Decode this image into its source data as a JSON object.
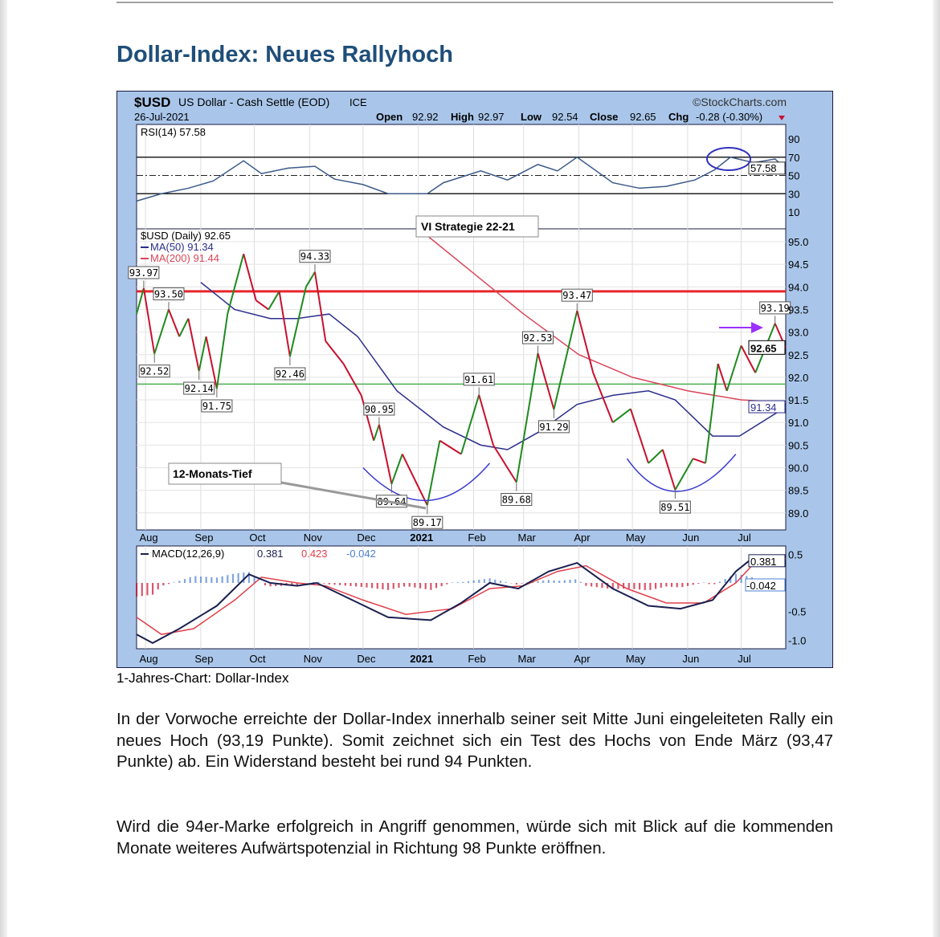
{
  "title": "Dollar-Index: Neues Rallyhoch",
  "caption": "1-Jahres-Chart: Dollar-Index",
  "paragraphs": [
    "In der Vorwoche erreichte der Dollar-Index innerhalb seiner seit Mitte Juni eingeleiteten Rally ein neues Hoch (93,19 Punkte). Somit zeichnet sich ein Test des Hochs von Ende März (93,47 Punkte) ab. Ein Widerstand besteht bei rund 94 Punkten.",
    "Wird die 94er-Marke erfolgreich in Angriff genommen, würde sich mit Blick auf die kommenden Monate weiteres Aufwärtspotenzial in Richtung 98 Punkte eröffnen."
  ],
  "chart_data": {
    "type": "line",
    "symbol": "$USD",
    "name": "US Dollar - Cash Settle (EOD)",
    "exchange": "ICE",
    "source": "©StockCharts.com",
    "date": "26-Jul-2021",
    "quote": {
      "open_label": "Open",
      "open": "92.92",
      "high_label": "High",
      "high": "92.97",
      "low_label": "Low",
      "low": "92.54",
      "close_label": "Close",
      "close": "92.65",
      "chg_label": "Chg",
      "chg": "-0.28 (-0.30%)"
    },
    "colors": {
      "background": "#a9c6ea",
      "price_up": "#1e8a1e",
      "price_down": "#c8102e",
      "ma50": "#2b2e8c",
      "ma200": "#d9475a",
      "resistance": "#e8262a",
      "support": "#4caf50",
      "arrow": "#9b30ff",
      "rsi_line": "#3c5a88",
      "macd": "#1a1f4f",
      "signal": "#e0404a",
      "histogram": "#4a7fd6"
    },
    "rsi": {
      "legend": "RSI(14) 57.58",
      "last": "57.58",
      "y_ticks": [
        "90",
        "70",
        "50",
        "30",
        "10"
      ],
      "points": [
        [
          "2020-07-27",
          22
        ],
        [
          "2020-08-10",
          30
        ],
        [
          "2020-08-25",
          36
        ],
        [
          "2020-09-08",
          44
        ],
        [
          "2020-09-25",
          66
        ],
        [
          "2020-10-05",
          52
        ],
        [
          "2020-10-20",
          58
        ],
        [
          "2020-11-04",
          60
        ],
        [
          "2020-11-15",
          46
        ],
        [
          "2020-12-01",
          40
        ],
        [
          "2020-12-15",
          30
        ],
        [
          "2021-01-06",
          30
        ],
        [
          "2021-01-15",
          42
        ],
        [
          "2021-02-05",
          55
        ],
        [
          "2021-02-20",
          45
        ],
        [
          "2021-03-09",
          62
        ],
        [
          "2021-03-20",
          55
        ],
        [
          "2021-03-31",
          70
        ],
        [
          "2021-04-20",
          42
        ],
        [
          "2021-05-05",
          36
        ],
        [
          "2021-05-20",
          38
        ],
        [
          "2021-06-05",
          45
        ],
        [
          "2021-06-16",
          56
        ],
        [
          "2021-06-25",
          70
        ],
        [
          "2021-07-08",
          64
        ],
        [
          "2021-07-20",
          68
        ],
        [
          "2021-07-26",
          57.58
        ]
      ]
    },
    "price": {
      "legend": "$USD (Daily) 92.65",
      "ma50_legend": "MA(50) 91.34",
      "ma200_legend": "MA(200) 91.44",
      "last": "92.65",
      "ma50_last": "91.34",
      "ylim": [
        88.7,
        95.5
      ],
      "y_ticks": [
        "95.0",
        "94.5",
        "94.0",
        "93.5",
        "93.0",
        "92.5",
        "92.0",
        "91.5",
        "91.0",
        "90.5",
        "90.0",
        "89.5",
        "89.0"
      ],
      "x_ticks": [
        "Aug",
        "Sep",
        "Oct",
        "Nov",
        "Dec",
        "2021",
        "Feb",
        "Mar",
        "Apr",
        "May",
        "Jun",
        "Jul"
      ],
      "resistance": 93.9,
      "support": 91.85,
      "close": [
        [
          "2020-07-27",
          93.4
        ],
        [
          "2020-07-31",
          93.97
        ],
        [
          "2020-08-06",
          92.52
        ],
        [
          "2020-08-14",
          93.5
        ],
        [
          "2020-08-20",
          92.9
        ],
        [
          "2020-08-25",
          93.3
        ],
        [
          "2020-08-31",
          92.14
        ],
        [
          "2020-09-04",
          92.9
        ],
        [
          "2020-09-10",
          91.75
        ],
        [
          "2020-09-16",
          93.4
        ],
        [
          "2020-09-25",
          94.73
        ],
        [
          "2020-10-02",
          93.7
        ],
        [
          "2020-10-09",
          93.5
        ],
        [
          "2020-10-15",
          93.9
        ],
        [
          "2020-10-21",
          92.46
        ],
        [
          "2020-10-30",
          94.0
        ],
        [
          "2020-11-04",
          94.33
        ],
        [
          "2020-11-10",
          92.8
        ],
        [
          "2020-11-20",
          92.3
        ],
        [
          "2020-11-30",
          91.6
        ],
        [
          "2020-12-07",
          90.6
        ],
        [
          "2020-12-10",
          90.95
        ],
        [
          "2020-12-17",
          89.64
        ],
        [
          "2020-12-23",
          90.3
        ],
        [
          "2021-01-06",
          89.17
        ],
        [
          "2021-01-13",
          90.6
        ],
        [
          "2021-01-25",
          90.3
        ],
        [
          "2021-02-04",
          91.61
        ],
        [
          "2021-02-12",
          90.5
        ],
        [
          "2021-02-25",
          89.68
        ],
        [
          "2021-03-09",
          92.53
        ],
        [
          "2021-03-18",
          91.29
        ],
        [
          "2021-03-31",
          93.47
        ],
        [
          "2021-04-09",
          92.1
        ],
        [
          "2021-04-20",
          91.0
        ],
        [
          "2021-04-30",
          91.3
        ],
        [
          "2021-05-10",
          90.1
        ],
        [
          "2021-05-18",
          90.4
        ],
        [
          "2021-05-25",
          89.51
        ],
        [
          "2021-06-04",
          90.2
        ],
        [
          "2021-06-11",
          90.1
        ],
        [
          "2021-06-18",
          92.3
        ],
        [
          "2021-06-23",
          91.7
        ],
        [
          "2021-07-01",
          92.7
        ],
        [
          "2021-07-09",
          92.1
        ],
        [
          "2021-07-20",
          93.19
        ],
        [
          "2021-07-26",
          92.65
        ]
      ],
      "ma50": [
        [
          "2020-09-01",
          94.1
        ],
        [
          "2020-09-20",
          93.5
        ],
        [
          "2020-10-10",
          93.3
        ],
        [
          "2020-10-25",
          93.3
        ],
        [
          "2020-11-12",
          93.4
        ],
        [
          "2020-11-28",
          92.9
        ],
        [
          "2020-12-20",
          91.7
        ],
        [
          "2021-01-15",
          90.9
        ],
        [
          "2021-02-05",
          90.5
        ],
        [
          "2021-02-20",
          90.4
        ],
        [
          "2021-03-10",
          90.8
        ],
        [
          "2021-03-31",
          91.4
        ],
        [
          "2021-04-20",
          91.6
        ],
        [
          "2021-05-10",
          91.7
        ],
        [
          "2021-05-25",
          91.5
        ],
        [
          "2021-06-15",
          90.7
        ],
        [
          "2021-06-30",
          90.7
        ],
        [
          "2021-07-26",
          91.34
        ]
      ],
      "ma200": [
        [
          "2021-01-07",
          95.1
        ],
        [
          "2021-02-01",
          94.3
        ],
        [
          "2021-03-01",
          93.4
        ],
        [
          "2021-04-01",
          92.5
        ],
        [
          "2021-05-01",
          92.0
        ],
        [
          "2021-06-01",
          91.7
        ],
        [
          "2021-07-01",
          91.5
        ],
        [
          "2021-07-26",
          91.44
        ]
      ],
      "annotations": [
        {
          "text": "93.97",
          "date": "2020-07-31",
          "value": 93.97,
          "pos": "above"
        },
        {
          "text": "92.52",
          "date": "2020-08-06",
          "value": 92.52,
          "pos": "below"
        },
        {
          "text": "93.50",
          "date": "2020-08-14",
          "value": 93.5,
          "pos": "above"
        },
        {
          "text": "92.14",
          "date": "2020-08-31",
          "value": 92.14,
          "pos": "below"
        },
        {
          "text": "91.75",
          "date": "2020-09-10",
          "value": 91.75,
          "pos": "below"
        },
        {
          "text": "94.33",
          "date": "2020-11-04",
          "value": 94.33,
          "pos": "above"
        },
        {
          "text": "92.46",
          "date": "2020-10-21",
          "value": 92.46,
          "pos": "below"
        },
        {
          "text": "90.95",
          "date": "2020-12-10",
          "value": 90.95,
          "pos": "above"
        },
        {
          "text": "89.64",
          "date": "2020-12-17",
          "value": 89.64,
          "pos": "below"
        },
        {
          "text": "89.17",
          "date": "2021-01-06",
          "value": 89.17,
          "pos": "below"
        },
        {
          "text": "91.61",
          "date": "2021-02-04",
          "value": 91.61,
          "pos": "above"
        },
        {
          "text": "89.68",
          "date": "2021-02-25",
          "value": 89.68,
          "pos": "below"
        },
        {
          "text": "92.53",
          "date": "2021-03-09",
          "value": 92.53,
          "pos": "above"
        },
        {
          "text": "91.29",
          "date": "2021-03-18",
          "value": 91.29,
          "pos": "below"
        },
        {
          "text": "93.47",
          "date": "2021-03-31",
          "value": 93.47,
          "pos": "above"
        },
        {
          "text": "89.51",
          "date": "2021-05-25",
          "value": 89.51,
          "pos": "below"
        },
        {
          "text": "93.19",
          "date": "2021-07-20",
          "value": 93.19,
          "pos": "above"
        }
      ],
      "callouts": [
        "VI Strategie 22-21",
        "12-Monats-Tief"
      ]
    },
    "macd": {
      "legend_name": "MACD(12,26,9)",
      "macd_value": "0.381",
      "signal_value": "0.423",
      "hist_value": "-0.042",
      "y_ticks": [
        "0.5",
        "-0.5",
        "-1.0"
      ],
      "line": [
        [
          "2020-07-27",
          -0.9
        ],
        [
          "2020-08-05",
          -1.05
        ],
        [
          "2020-08-20",
          -0.8
        ],
        [
          "2020-09-10",
          -0.4
        ],
        [
          "2020-09-28",
          0.15
        ],
        [
          "2020-10-10",
          0.0
        ],
        [
          "2020-10-25",
          -0.05
        ],
        [
          "2020-11-05",
          0.0
        ],
        [
          "2020-11-25",
          -0.3
        ],
        [
          "2020-12-15",
          -0.6
        ],
        [
          "2021-01-08",
          -0.65
        ],
        [
          "2021-01-25",
          -0.35
        ],
        [
          "2021-02-10",
          0.0
        ],
        [
          "2021-02-26",
          -0.1
        ],
        [
          "2021-03-15",
          0.2
        ],
        [
          "2021-03-31",
          0.35
        ],
        [
          "2021-04-20",
          -0.1
        ],
        [
          "2021-05-10",
          -0.4
        ],
        [
          "2021-05-28",
          -0.45
        ],
        [
          "2021-06-15",
          -0.3
        ],
        [
          "2021-06-28",
          0.2
        ],
        [
          "2021-07-08",
          0.45
        ],
        [
          "2021-07-26",
          0.381
        ]
      ],
      "signal": [
        [
          "2020-07-27",
          -0.6
        ],
        [
          "2020-08-10",
          -0.9
        ],
        [
          "2020-08-28",
          -0.8
        ],
        [
          "2020-09-20",
          -0.3
        ],
        [
          "2020-10-05",
          0.1
        ],
        [
          "2020-10-25",
          0.0
        ],
        [
          "2020-11-10",
          -0.05
        ],
        [
          "2020-12-01",
          -0.3
        ],
        [
          "2020-12-25",
          -0.55
        ],
        [
          "2021-01-20",
          -0.45
        ],
        [
          "2021-02-10",
          -0.1
        ],
        [
          "2021-03-01",
          -0.05
        ],
        [
          "2021-03-20",
          0.2
        ],
        [
          "2021-04-05",
          0.3
        ],
        [
          "2021-04-28",
          -0.1
        ],
        [
          "2021-05-20",
          -0.35
        ],
        [
          "2021-06-10",
          -0.35
        ],
        [
          "2021-06-28",
          0.0
        ],
        [
          "2021-07-10",
          0.4
        ],
        [
          "2021-07-26",
          0.423
        ]
      ]
    }
  }
}
